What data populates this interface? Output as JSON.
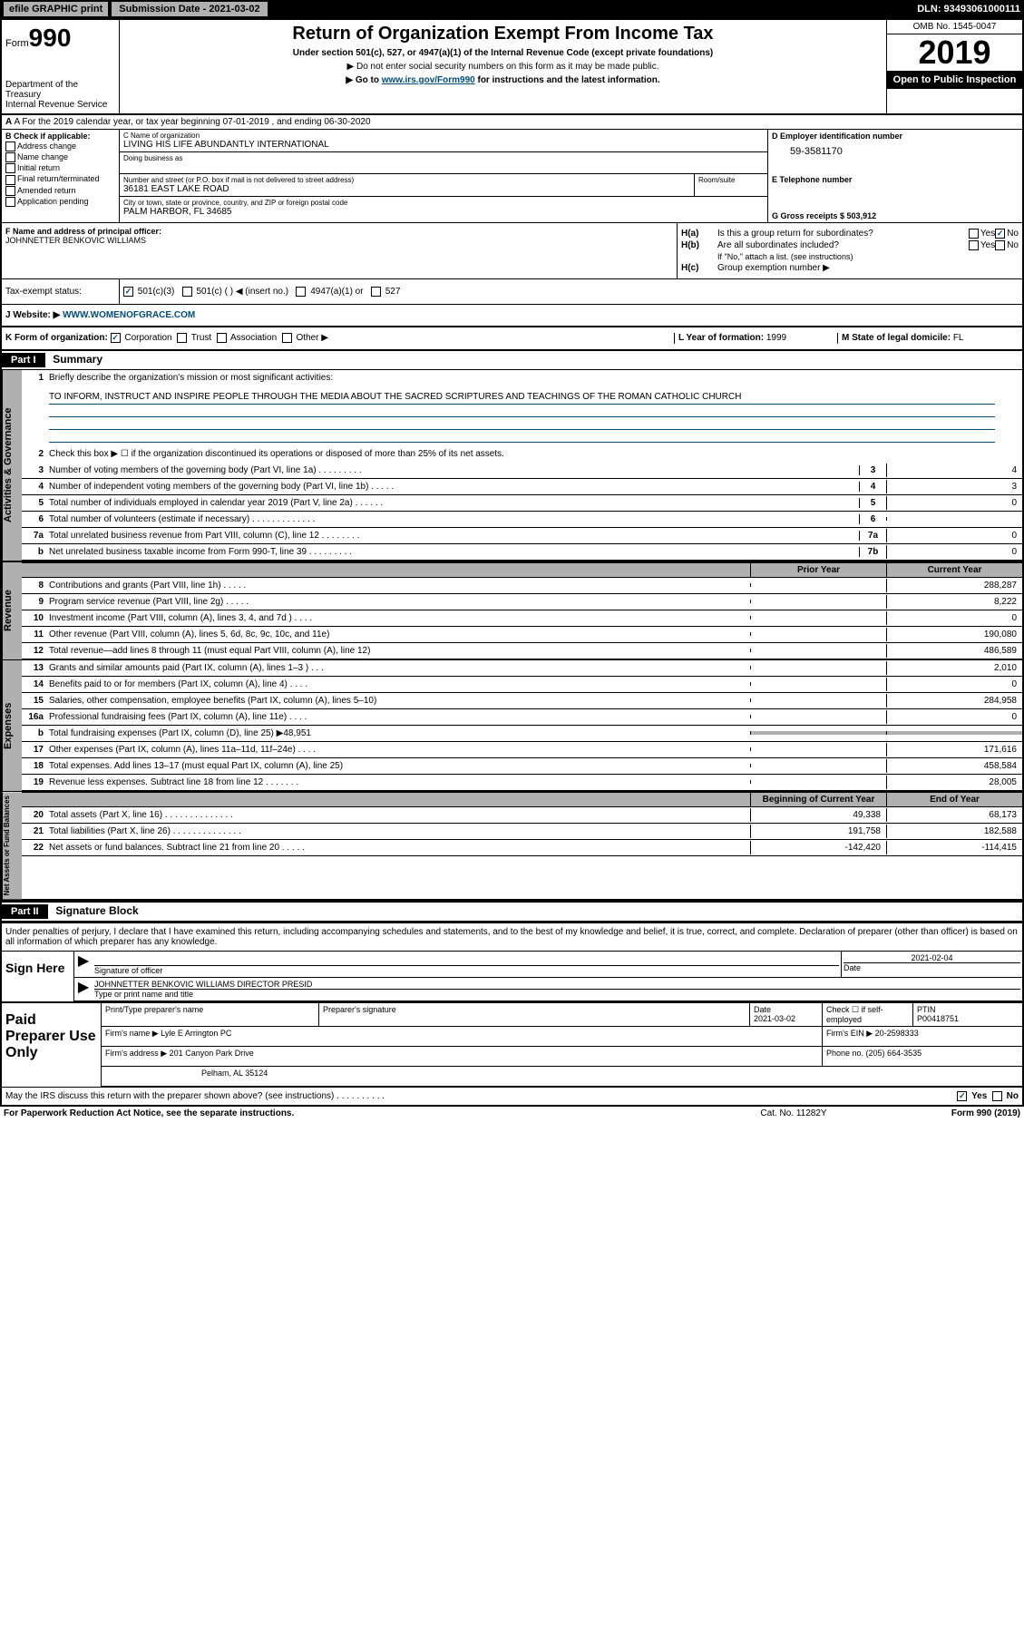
{
  "top": {
    "efile": "efile GRAPHIC print",
    "submission": "Submission Date - 2021-03-02",
    "dln": "DLN: 93493061000111"
  },
  "header": {
    "form_prefix": "Form",
    "form_num": "990",
    "dept": "Department of the Treasury\nInternal Revenue Service",
    "title": "Return of Organization Exempt From Income Tax",
    "sub1": "Under section 501(c), 527, or 4947(a)(1) of the Internal Revenue Code (except private foundations)",
    "sub2": "▶ Do not enter social security numbers on this form as it may be made public.",
    "sub3_pre": "▶ Go to ",
    "sub3_link": "www.irs.gov/Form990",
    "sub3_post": " for instructions and the latest information.",
    "omb": "OMB No. 1545-0047",
    "year": "2019",
    "open": "Open to Public Inspection"
  },
  "row_a": {
    "text": "A For the 2019 calendar year, or tax year beginning 07-01-2019     , and ending 06-30-2020"
  },
  "col_b": {
    "label": "B Check if applicable:",
    "items": [
      "Address change",
      "Name change",
      "Initial return",
      "Final return/terminated",
      "Amended return",
      "Application pending"
    ]
  },
  "col_c": {
    "name_label": "C Name of organization",
    "name": "LIVING HIS LIFE ABUNDANTLY INTERNATIONAL",
    "dba_label": "Doing business as",
    "dba": "",
    "street_label": "Number and street (or P.O. box if mail is not delivered to street address)",
    "street": "36181 EAST LAKE ROAD",
    "room_label": "Room/suite",
    "room": "",
    "city_label": "City or town, state or province, country, and ZIP or foreign postal code",
    "city": "PALM HARBOR, FL  34685"
  },
  "col_d": {
    "ein_label": "D Employer identification number",
    "ein": "59-3581170",
    "tel_label": "E Telephone number",
    "tel": "",
    "gross_label": "G Gross receipts $ ",
    "gross": "503,912"
  },
  "section_f": {
    "label": "F Name and address of principal officer:",
    "name": "JOHNNETTER BENKOVIC WILLIAMS"
  },
  "section_h": {
    "ha_label": "H(a)",
    "ha_text": "Is this a group return for subordinates?",
    "hb_label": "H(b)",
    "hb_text": "Are all subordinates included?",
    "hb_note": "If \"No,\" attach a list. (see instructions)",
    "hc_label": "H(c)",
    "hc_text": "Group exemption number ▶",
    "yes": "Yes",
    "no": "No"
  },
  "tax_status": {
    "label": "Tax-exempt status:",
    "opt1": "501(c)(3)",
    "opt2": "501(c) (    ) ◀ (insert no.)",
    "opt3": "4947(a)(1) or",
    "opt4": "527"
  },
  "website": {
    "label": "J    Website: ▶",
    "value": "WWW.WOMENOFGRACE.COM"
  },
  "row_k": {
    "label": "K Form of organization:",
    "corp": "Corporation",
    "trust": "Trust",
    "assoc": "Association",
    "other": "Other ▶",
    "l_label": "L Year of formation: ",
    "l_val": "1999",
    "m_label": "M State of legal domicile: ",
    "m_val": "FL"
  },
  "part1": {
    "part": "Part I",
    "title": "Summary"
  },
  "activities": {
    "side": "Activities & Governance",
    "l1_label": "1",
    "l1_text": "Briefly describe the organization's mission or most significant activities:",
    "l1_mission": "TO INFORM, INSTRUCT AND INSPIRE PEOPLE THROUGH THE MEDIA ABOUT THE SACRED SCRIPTURES AND TEACHINGS OF THE ROMAN CATHOLIC CHURCH",
    "l2_label": "2",
    "l2_text": "Check this box ▶ ☐ if the organization discontinued its operations or disposed of more than 25% of its net assets.",
    "lines": [
      {
        "n": "3",
        "d": "Number of voting members of the governing body (Part VI, line 1a)    .    .    .    .    .    .    .    .    .",
        "bn": "3",
        "bv": "4"
      },
      {
        "n": "4",
        "d": "Number of independent voting members of the governing body (Part VI, line 1b)    .    .    .    .    .",
        "bn": "4",
        "bv": "3"
      },
      {
        "n": "5",
        "d": "Total number of individuals employed in calendar year 2019 (Part V, line 2a)    .    .    .    .    .    .",
        "bn": "5",
        "bv": "0"
      },
      {
        "n": "6",
        "d": "Total number of volunteers (estimate if necessary)    .    .    .    .    .    .    .    .    .    .    .    .    .",
        "bn": "6",
        "bv": ""
      },
      {
        "n": "7a",
        "d": "Total unrelated business revenue from Part VIII, column (C), line 12    .    .    .    .    .    .    .    .",
        "bn": "7a",
        "bv": "0"
      },
      {
        "n": "b",
        "d": "Net unrelated business taxable income from Form 990-T, line 39    .    .    .    .    .    .    .    .    .",
        "bn": "7b",
        "bv": "0"
      }
    ]
  },
  "cols_hdr": {
    "c2": "Prior Year",
    "c3": "Current Year"
  },
  "revenue": {
    "side": "Revenue",
    "lines": [
      {
        "n": "8",
        "d": "Contributions and grants (Part VIII, line 1h)    .    .    .    .    .",
        "b1": "",
        "b2": "288,287"
      },
      {
        "n": "9",
        "d": "Program service revenue (Part VIII, line 2g)    .    .    .    .    .",
        "b1": "",
        "b2": "8,222"
      },
      {
        "n": "10",
        "d": "Investment income (Part VIII, column (A), lines 3, 4, and 7d )    .    .    .    .",
        "b1": "",
        "b2": "0"
      },
      {
        "n": "11",
        "d": "Other revenue (Part VIII, column (A), lines 5, 6d, 8c, 9c, 10c, and 11e)",
        "b1": "",
        "b2": "190,080"
      },
      {
        "n": "12",
        "d": "Total revenue—add lines 8 through 11 (must equal Part VIII, column (A), line 12)",
        "b1": "",
        "b2": "486,589"
      }
    ]
  },
  "expenses": {
    "side": "Expenses",
    "lines": [
      {
        "n": "13",
        "d": "Grants and similar amounts paid (Part IX, column (A), lines 1–3 )    .    .    .",
        "b1": "",
        "b2": "2,010"
      },
      {
        "n": "14",
        "d": "Benefits paid to or for members (Part IX, column (A), line 4)    .    .    .    .",
        "b1": "",
        "b2": "0"
      },
      {
        "n": "15",
        "d": "Salaries, other compensation, employee benefits (Part IX, column (A), lines 5–10)",
        "b1": "",
        "b2": "284,958"
      },
      {
        "n": "16a",
        "d": "Professional fundraising fees (Part IX, column (A), line 11e)    .    .    .    .",
        "b1": "",
        "b2": "0"
      },
      {
        "n": "b",
        "d": "Total fundraising expenses (Part IX, column (D), line 25) ▶48,951",
        "b1": "shaded",
        "b2": "shaded"
      },
      {
        "n": "17",
        "d": "Other expenses (Part IX, column (A), lines 11a–11d, 11f–24e)    .    .    .    .",
        "b1": "",
        "b2": "171,616"
      },
      {
        "n": "18",
        "d": "Total expenses. Add lines 13–17 (must equal Part IX, column (A), line 25)",
        "b1": "",
        "b2": "458,584"
      },
      {
        "n": "19",
        "d": "Revenue less expenses. Subtract line 18 from line 12    .    .    .    .    .    .    .",
        "b1": "",
        "b2": "28,005"
      }
    ]
  },
  "net_hdr": {
    "c2": "Beginning of Current Year",
    "c3": "End of Year"
  },
  "net": {
    "side": "Net Assets or Fund Balances",
    "lines": [
      {
        "n": "20",
        "d": "Total assets (Part X, line 16)    .    .    .    .    .    .    .    .    .    .    .    .    .    .",
        "b1": "49,338",
        "b2": "68,173"
      },
      {
        "n": "21",
        "d": "Total liabilities (Part X, line 26)   .    .    .    .    .    .    .    .    .    .    .    .    .    .",
        "b1": "191,758",
        "b2": "182,588"
      },
      {
        "n": "22",
        "d": "Net assets or fund balances. Subtract line 21 from line 20    .    .    .    .    .",
        "b1": "-142,420",
        "b2": "-114,415"
      }
    ]
  },
  "part2": {
    "part": "Part II",
    "title": "Signature Block",
    "text": "Under penalties of perjury, I declare that I have examined this return, including accompanying schedules and statements, and to the best of my knowledge and belief, it is true, correct, and complete. Declaration of preparer (other than officer) is based on all information of which preparer has any knowledge."
  },
  "sign": {
    "label": "Sign Here",
    "sig_label": "Signature of officer",
    "date_label": "Date",
    "date": "2021-02-04",
    "name": "JOHNNETTER BENKOVIC WILLIAMS  DIRECTOR PRESID",
    "name_label": "Type or print name and title"
  },
  "prep": {
    "label": "Paid Preparer Use Only",
    "h1": "Print/Type preparer's name",
    "h2": "Preparer's signature",
    "h3": "Date",
    "h3v": "2021-03-02",
    "h4": "Check ☐ if self-employed",
    "h5": "PTIN",
    "h5v": "P00418751",
    "firm_label": "Firm's name      ▶",
    "firm": "Lyle E Arrington PC",
    "ein_label": "Firm's EIN ▶",
    "ein": "20-2598333",
    "addr_label": "Firm's address ▶",
    "addr1": "201 Canyon Park Drive",
    "addr2": "Pelham, AL  35124",
    "phone_label": "Phone no. ",
    "phone": "(205) 664-3535"
  },
  "bottom": {
    "q": "May the IRS discuss this return with the preparer shown above? (see instructions)    .    .    .    .    .    .    .    .    .    .",
    "yes": "Yes",
    "no": "No"
  },
  "footer": {
    "f1": "For Paperwork Reduction Act Notice, see the separate instructions.",
    "f2": "Cat. No. 11282Y",
    "f3": "Form 990 (2019)"
  }
}
